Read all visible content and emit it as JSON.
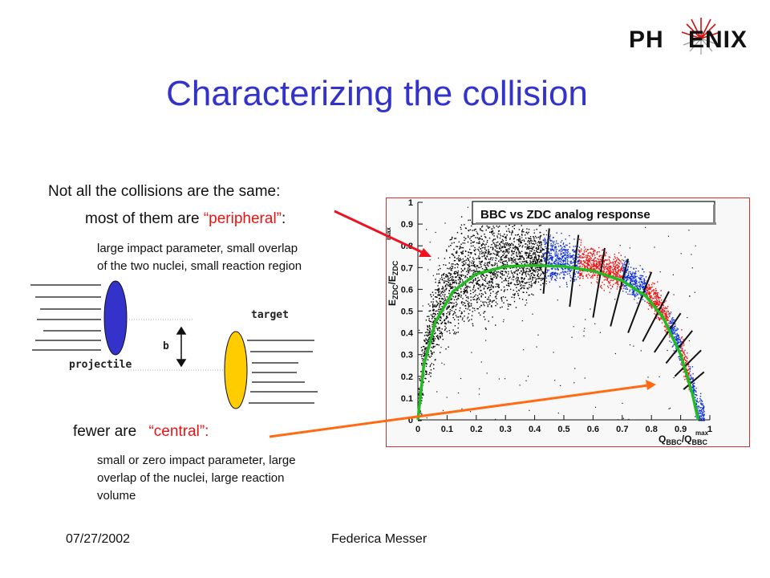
{
  "logo": {
    "left": "PH",
    "right": "ENIX"
  },
  "slide": {
    "title": "Characterizing the collision",
    "intro": "Not all the collisions are the same:",
    "peripheral_prefix": "most of them are ",
    "peripheral_word": "“peripheral”",
    "peripheral_suffix": ":",
    "peripheral_desc_1": "large impact parameter, small overlap",
    "peripheral_desc_2": "of the two nuclei, small reaction region",
    "central_prefix": "fewer are ",
    "central_word": "“central”:",
    "central_desc_1": "small or zero  impact parameter, large",
    "central_desc_2": "overlap of the nuclei, large reaction",
    "central_desc_3": "volume"
  },
  "diagram": {
    "projectile_label": "projectile",
    "target_label": "target",
    "b_label": "b"
  },
  "footer": {
    "date": "07/27/2002",
    "author": "Federica Messer"
  },
  "colors": {
    "title": "#3333cc",
    "highlight": "#ee1111",
    "arrow_red": "#ee1122",
    "arrow_orange": "#ff6a13",
    "projectile": "#3333cc",
    "target": "#ffcc00",
    "curve": "#22bb22"
  },
  "chart_data": {
    "type": "scatter",
    "title": "BBC vs ZDC analog response",
    "xlabel": "Q_BBC/Q_BBC^max",
    "ylabel": "E_ZDC/E_ZDC^max",
    "xlim": [
      0,
      1
    ],
    "ylim": [
      0,
      1
    ],
    "x_ticks": [
      "0",
      "0.1",
      "0.2",
      "0.3",
      "0.4",
      "0.5",
      "0.6",
      "0.7",
      "0.8",
      "0.9",
      "1"
    ],
    "y_ticks": [
      "0",
      "0.1",
      "0.2",
      "0.3",
      "0.4",
      "0.5",
      "0.6",
      "0.7",
      "0.8",
      "0.9",
      "1"
    ],
    "series": [
      {
        "color": "#000000",
        "description_points": "black band",
        "x_range": [
          0.0,
          0.43
        ]
      },
      {
        "color": "#1133dd",
        "x_range": [
          0.43,
          0.55
        ]
      },
      {
        "color": "#ee1111",
        "x_range": [
          0.55,
          0.7
        ]
      },
      {
        "color": "#1133dd",
        "x_range": [
          0.7,
          0.78
        ]
      },
      {
        "color": "#ee1111",
        "x_range": [
          0.78,
          0.86
        ]
      },
      {
        "color": "#1133dd",
        "x_range": [
          0.86,
          0.9
        ]
      },
      {
        "color": "#ee1111",
        "x_range": [
          0.9,
          0.93
        ]
      },
      {
        "color": "#1133dd",
        "x_range": [
          0.93,
          0.98
        ]
      }
    ],
    "fit_curve": [
      [
        0.0,
        0.0
      ],
      [
        0.02,
        0.25
      ],
      [
        0.06,
        0.45
      ],
      [
        0.12,
        0.59
      ],
      [
        0.2,
        0.67
      ],
      [
        0.3,
        0.705
      ],
      [
        0.4,
        0.71
      ],
      [
        0.5,
        0.705
      ],
      [
        0.6,
        0.685
      ],
      [
        0.7,
        0.64
      ],
      [
        0.78,
        0.57
      ],
      [
        0.84,
        0.47
      ],
      [
        0.9,
        0.3
      ],
      [
        0.94,
        0.12
      ],
      [
        0.96,
        0.0
      ]
    ],
    "cut_lines": [
      [
        [
          0.43,
          0.58
        ],
        [
          0.45,
          0.88
        ]
      ],
      [
        [
          0.52,
          0.52
        ],
        [
          0.55,
          0.85
        ]
      ],
      [
        [
          0.6,
          0.47
        ],
        [
          0.64,
          0.79
        ]
      ],
      [
        [
          0.66,
          0.43
        ],
        [
          0.72,
          0.74
        ]
      ],
      [
        [
          0.72,
          0.4
        ],
        [
          0.8,
          0.68
        ]
      ],
      [
        [
          0.77,
          0.36
        ],
        [
          0.86,
          0.59
        ]
      ],
      [
        [
          0.81,
          0.31
        ],
        [
          0.9,
          0.49
        ]
      ],
      [
        [
          0.85,
          0.26
        ],
        [
          0.94,
          0.41
        ]
      ],
      [
        [
          0.88,
          0.2
        ],
        [
          0.97,
          0.32
        ]
      ],
      [
        [
          0.91,
          0.14
        ],
        [
          0.98,
          0.22
        ]
      ]
    ]
  }
}
